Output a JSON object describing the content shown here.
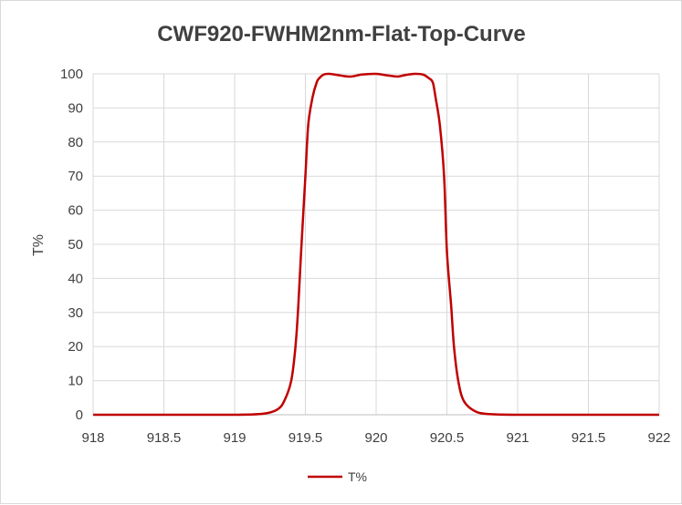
{
  "chart_data": {
    "type": "line",
    "title": "CWF920-FWHM2nm-Flat-Top-Curve",
    "xlabel": "",
    "ylabel": "T%",
    "xlim": [
      918,
      922
    ],
    "ylim": [
      0,
      100
    ],
    "xticks": [
      918,
      918.5,
      919,
      919.5,
      920,
      920.5,
      921,
      921.5,
      922
    ],
    "xtick_labels": [
      "918",
      "918.5",
      "919",
      "919.5",
      "920",
      "920.5",
      "921",
      "921.5",
      "922"
    ],
    "yticks": [
      0,
      10,
      20,
      30,
      40,
      50,
      60,
      70,
      80,
      90,
      100
    ],
    "ytick_labels": [
      "0",
      "10",
      "20",
      "30",
      "40",
      "50",
      "60",
      "70",
      "80",
      "90",
      "100"
    ],
    "grid": true,
    "legend_position": "bottom",
    "series": [
      {
        "name": "T%",
        "color": "#c00000",
        "x": [
          918,
          918.5,
          919,
          919.2,
          919.3,
          919.35,
          919.4,
          919.43,
          919.45,
          919.47,
          919.5,
          919.52,
          919.55,
          919.58,
          919.6,
          919.63,
          919.67,
          919.75,
          919.82,
          919.9,
          920,
          920.07,
          920.15,
          920.2,
          920.27,
          920.33,
          920.37,
          920.4,
          920.42,
          920.45,
          920.48,
          920.5,
          920.53,
          920.55,
          920.58,
          920.62,
          920.7,
          920.8,
          921,
          921.5,
          922
        ],
        "y": [
          0,
          0,
          0,
          0.3,
          1.5,
          4,
          10,
          20,
          32,
          48,
          70,
          85,
          93,
          97.5,
          98.8,
          99.8,
          100,
          99.5,
          99.2,
          99.8,
          100,
          99.6,
          99.2,
          99.6,
          100,
          99.8,
          98.8,
          97.5,
          93,
          85,
          70,
          48,
          32,
          20,
          10,
          4,
          1,
          0.2,
          0,
          0,
          0
        ]
      }
    ]
  }
}
